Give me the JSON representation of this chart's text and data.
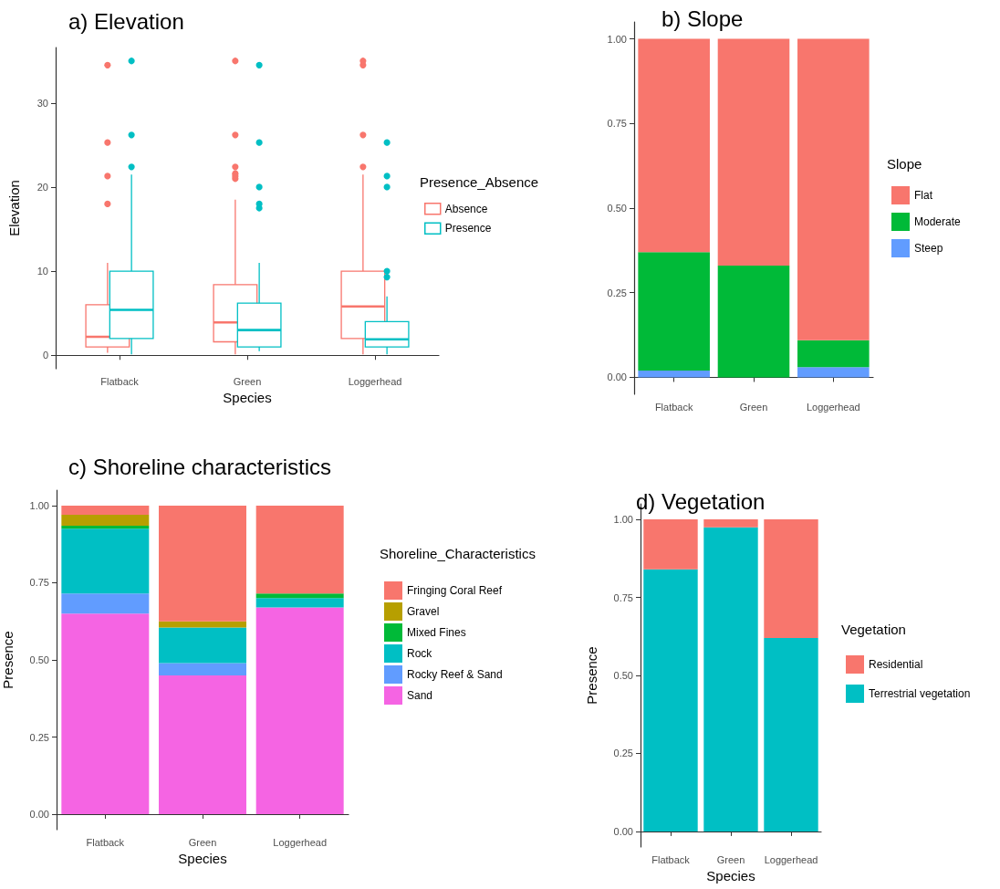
{
  "chart_data": [
    {
      "type": "box",
      "title": "a) Elevation",
      "xlabel": "Species",
      "ylabel": "Elevation",
      "legend_title": "Presence_Absence",
      "legend": "right",
      "grid": false,
      "categories": [
        "Flatback",
        "Green",
        "Loggerhead"
      ],
      "ylim": [
        -1.6,
        36.6
      ],
      "yticks": [
        0,
        10,
        20,
        30
      ],
      "series": [
        {
          "name": "Absence",
          "color": "#f8766d",
          "boxes": [
            {
              "low": 0.3,
              "q1": 1,
              "median": 2.2,
              "q3": 6,
              "high": 11,
              "outliers": [
                18,
                21.3,
                25.3,
                34.5
              ]
            },
            {
              "low": 0.1,
              "q1": 1.6,
              "median": 3.9,
              "q3": 8.4,
              "high": 18.5,
              "outliers": [
                21,
                21.3,
                21.6,
                22.4,
                26.2,
                35
              ]
            },
            {
              "low": 0.1,
              "q1": 2,
              "median": 5.8,
              "q3": 10,
              "high": 21.5,
              "outliers": [
                22.4,
                26.2,
                34.5,
                35
              ]
            }
          ]
        },
        {
          "name": "Presence",
          "color": "#00bfc4",
          "boxes": [
            {
              "low": 0.1,
              "q1": 2,
              "median": 5.4,
              "q3": 10,
              "high": 21.5,
              "outliers": [
                22.4,
                26.2,
                35
              ]
            },
            {
              "low": 0.5,
              "q1": 1,
              "median": 3,
              "q3": 6.2,
              "high": 11,
              "outliers": [
                17.5,
                18,
                20,
                25.3,
                34.5
              ]
            },
            {
              "low": 0.1,
              "q1": 1,
              "median": 1.9,
              "q3": 4,
              "high": 7,
              "outliers": [
                9.3,
                10,
                20,
                21.3,
                25.3
              ]
            }
          ]
        }
      ]
    },
    {
      "type": "bar",
      "title": "b) Slope",
      "legend_title": "Slope",
      "legend": "right",
      "grid": false,
      "stacked": true,
      "categories": [
        "Flatback",
        "Green",
        "Loggerhead"
      ],
      "ylim": [
        -0.05,
        1.05
      ],
      "yticks": [
        {
          "value": 0,
          "label": "0.00"
        },
        {
          "value": 0.25,
          "label": "0.25"
        },
        {
          "value": 0.5,
          "label": "0.50"
        },
        {
          "value": 0.75,
          "label": "0.75"
        },
        {
          "value": 1,
          "label": "1.00"
        }
      ],
      "series": [
        {
          "name": "Steep",
          "color": "#619cff",
          "values": [
            0.02,
            0,
            0.03
          ]
        },
        {
          "name": "Moderate",
          "color": "#00ba38",
          "values": [
            0.35,
            0.33,
            0.08
          ]
        },
        {
          "name": "Flat",
          "color": "#f8766d",
          "values": [
            0.63,
            0.67,
            0.89
          ]
        }
      ]
    },
    {
      "type": "bar",
      "title": "c) Shoreline characteristics",
      "xlabel": "Species",
      "ylabel": "Presence",
      "legend_title": "Shoreline_Characteristics",
      "legend": "right",
      "grid": false,
      "stacked": true,
      "categories": [
        "Flatback",
        "Green",
        "Loggerhead"
      ],
      "ylim": [
        -0.05,
        1.05
      ],
      "yticks": [
        {
          "value": 0,
          "label": "0.00"
        },
        {
          "value": 0.25,
          "label": "0.25"
        },
        {
          "value": 0.5,
          "label": "0.50"
        },
        {
          "value": 0.75,
          "label": "0.75"
        },
        {
          "value": 1,
          "label": "1.00"
        }
      ],
      "series": [
        {
          "name": "Sand",
          "color": "#f564e3",
          "values": [
            0.65,
            0.45,
            0.67
          ]
        },
        {
          "name": "Rocky Reef & Sand",
          "color": "#619cff",
          "values": [
            0.065,
            0.04,
            0
          ]
        },
        {
          "name": "Rock",
          "color": "#00bfc4",
          "values": [
            0.21,
            0.115,
            0.03
          ]
        },
        {
          "name": "Mixed Fines",
          "color": "#00ba38",
          "values": [
            0.01,
            0,
            0.015
          ]
        },
        {
          "name": "Gravel",
          "color": "#b79f00",
          "values": [
            0.035,
            0.02,
            0
          ]
        },
        {
          "name": "Fringing Coral Reef",
          "color": "#f8766d",
          "values": [
            0.03,
            0.375,
            0.285
          ]
        }
      ]
    },
    {
      "type": "bar",
      "title": "d) Vegetation",
      "xlabel": "Species",
      "ylabel": "Presence",
      "legend_title": "Vegetation",
      "legend": "right",
      "grid": false,
      "stacked": true,
      "categories": [
        "Flatback",
        "Green",
        "Loggerhead"
      ],
      "ylim": [
        -0.05,
        1.05
      ],
      "yticks": [
        {
          "value": 0,
          "label": "0.00"
        },
        {
          "value": 0.25,
          "label": "0.25"
        },
        {
          "value": 0.5,
          "label": "0.50"
        },
        {
          "value": 0.75,
          "label": "0.75"
        },
        {
          "value": 1,
          "label": "1.00"
        }
      ],
      "series": [
        {
          "name": "Terrestrial vegetation",
          "color": "#00bfc4",
          "values": [
            0.84,
            0.975,
            0.62
          ]
        },
        {
          "name": "Residential",
          "color": "#f8766d",
          "values": [
            0.16,
            0.025,
            0.38
          ]
        }
      ]
    }
  ]
}
